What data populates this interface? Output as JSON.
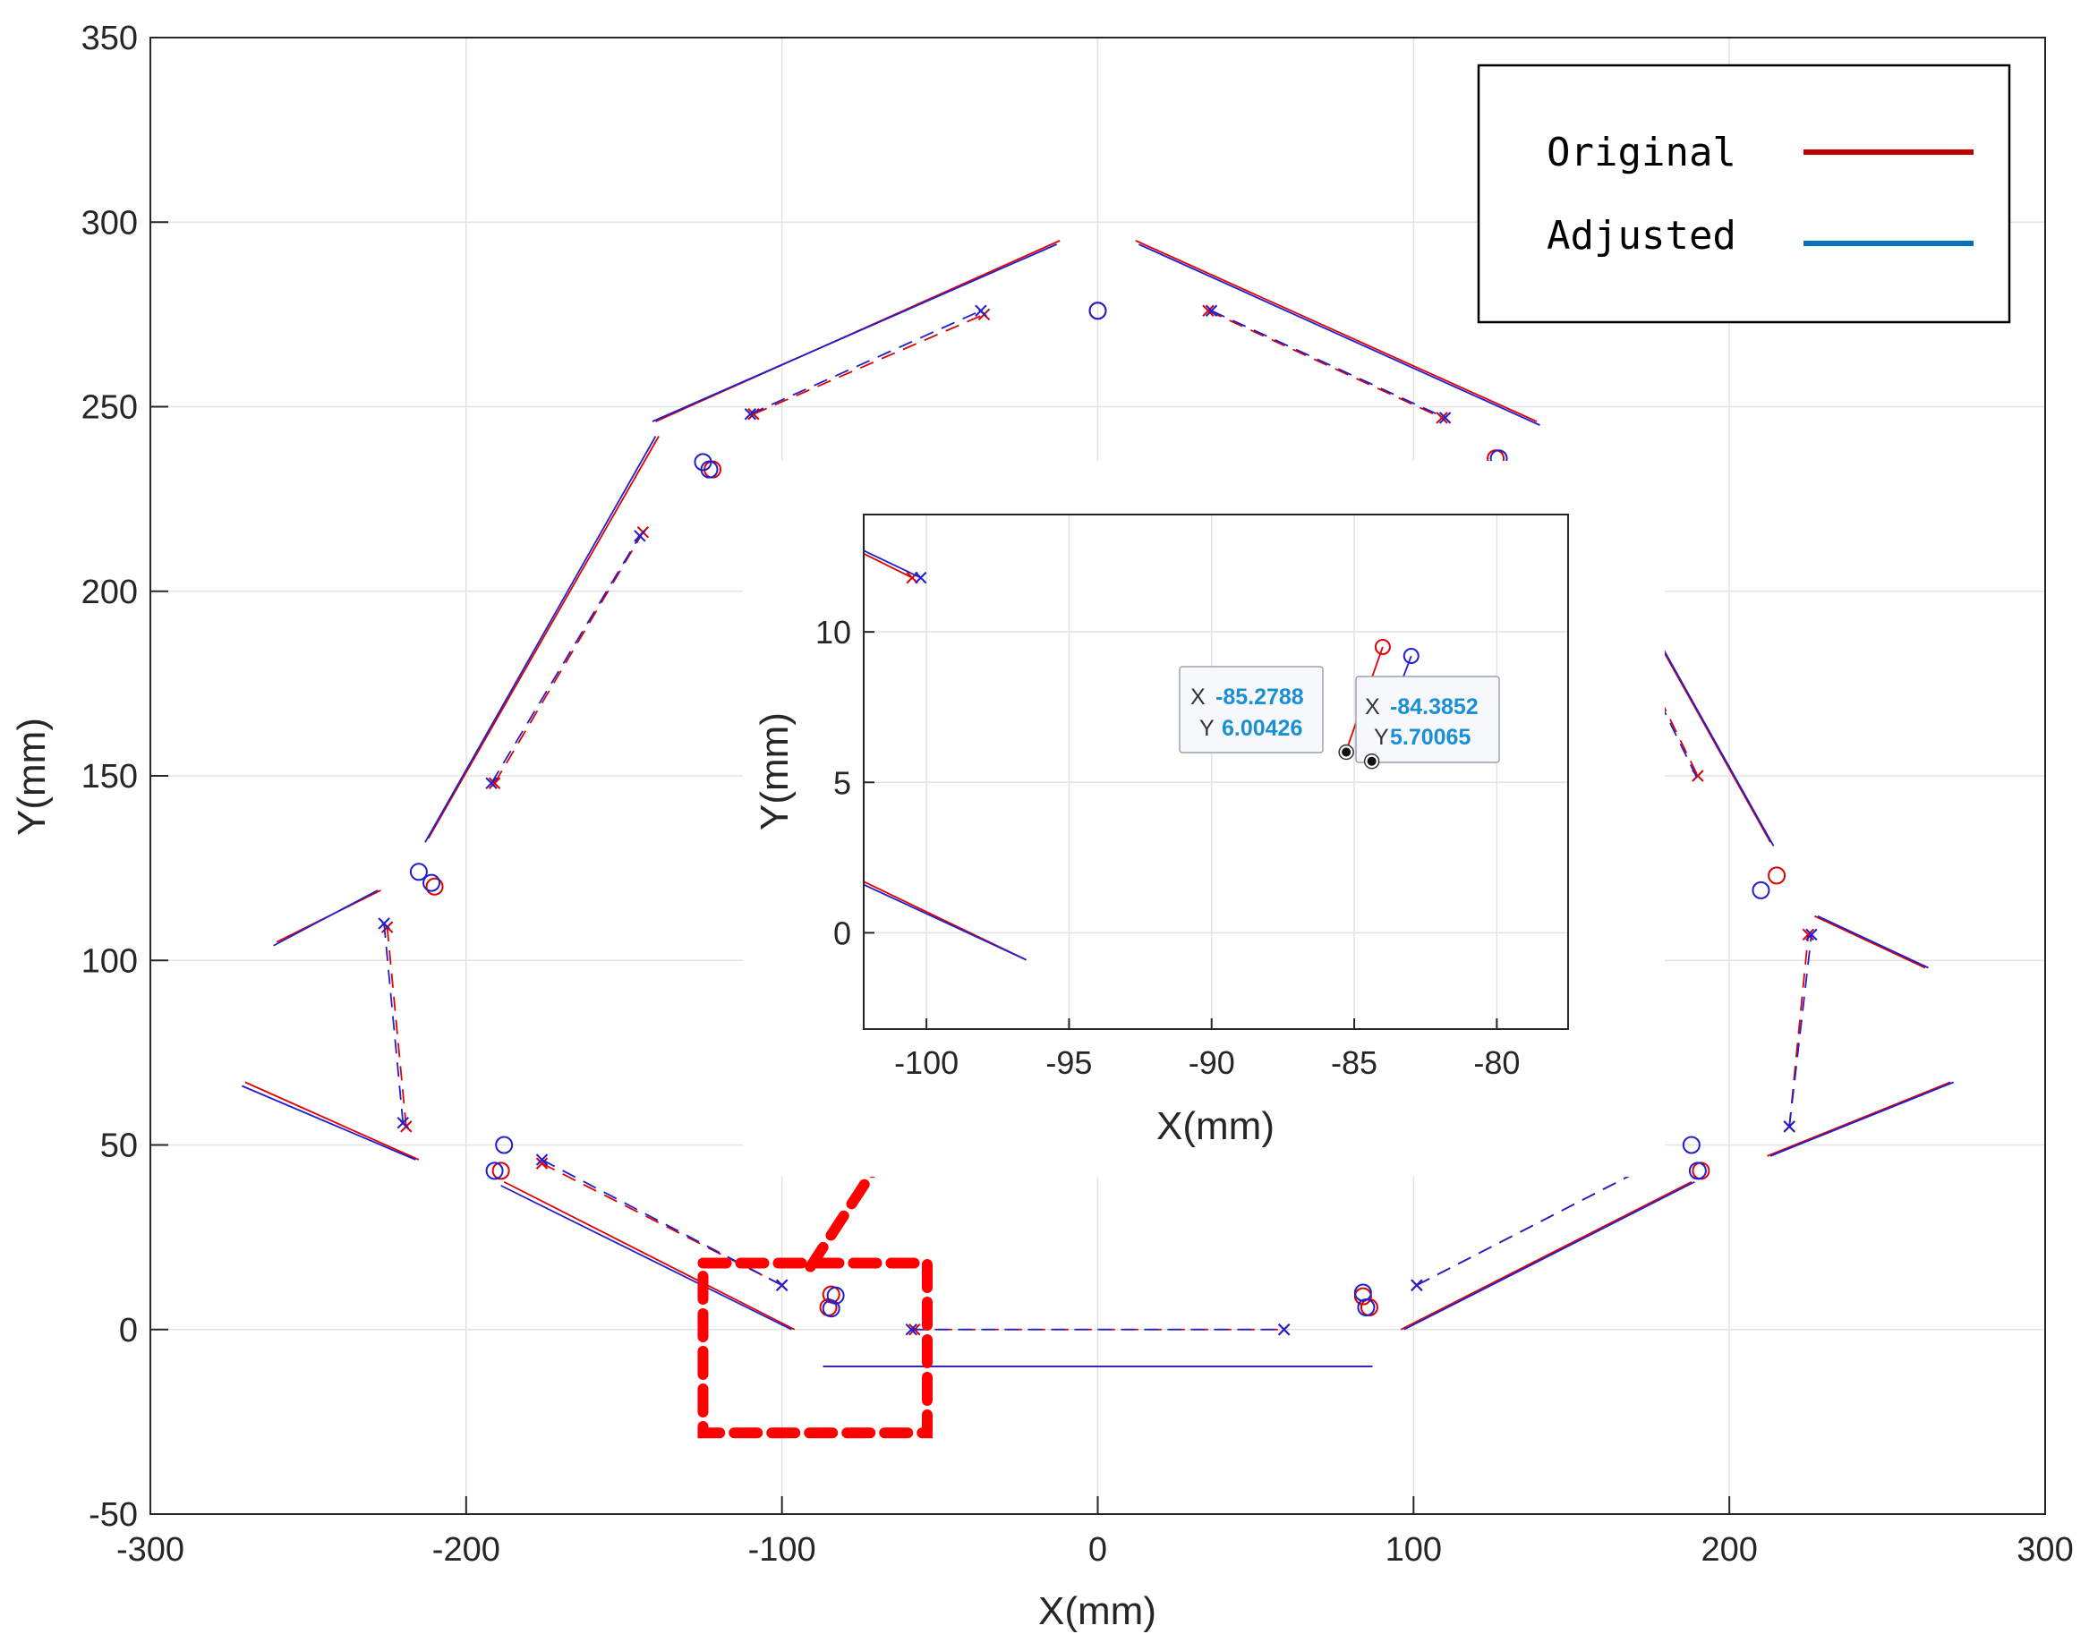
{
  "chart_data": [
    {
      "type": "line",
      "role": "main",
      "title": "",
      "xlabel": "X(mm)",
      "ylabel": "Y(mm)",
      "xlim": [
        -300,
        300
      ],
      "ylim": [
        -50,
        350
      ],
      "xticks": [
        -300,
        -200,
        -100,
        0,
        100,
        200,
        300
      ],
      "yticks": [
        -50,
        0,
        50,
        100,
        150,
        200,
        250,
        300,
        350
      ],
      "xtick_labels": [
        "-300",
        "-200",
        "-100",
        "0",
        "100",
        "200",
        "300"
      ],
      "ytick_labels": [
        "-50",
        "0",
        "50",
        "100",
        "150",
        "200",
        "250",
        "300",
        "350"
      ],
      "grid": true,
      "legend": {
        "placement": "top-right",
        "entries": [
          {
            "label": "Original",
            "color": "#c00000"
          },
          {
            "label": "Adjusted",
            "color": "#0070c0"
          }
        ]
      },
      "series": [
        {
          "name": "Original",
          "color": "#e00000",
          "solid_segments": [
            [
              [
                -270,
                67
              ],
              [
                -215,
                46
              ]
            ],
            [
              [
                -260,
                105
              ],
              [
                -227,
                119
              ]
            ],
            [
              [
                -212,
                133
              ],
              [
                -139,
                242
              ]
            ],
            [
              [
                -140,
                246
              ],
              [
                -12,
                295
              ]
            ],
            [
              [
                12,
                295
              ],
              [
                139,
                246
              ]
            ],
            [
              [
                -188,
                40
              ],
              [
                -96,
                0
              ]
            ],
            [
              [
                -87,
                -10
              ],
              [
                87,
                -10
              ]
            ],
            [
              [
                96,
                0
              ],
              [
                188,
                40
              ]
            ],
            [
              [
                212,
                47
              ],
              [
                270,
                67
              ]
            ],
            [
              [
                227,
                112
              ],
              [
                262,
                98
              ]
            ],
            [
              [
                177,
                187
              ],
              [
                213,
                132
              ]
            ]
          ],
          "dashed_segments": [
            [
              [
                -225,
                109
              ],
              [
                -219,
                55
              ]
            ],
            [
              [
                -191,
                148
              ],
              [
                -144,
                216
              ]
            ],
            [
              [
                -109,
                248
              ],
              [
                -36,
                275
              ]
            ],
            [
              [
                35,
                276
              ],
              [
                109,
                247
              ]
            ],
            [
              [
                -176,
                45
              ],
              [
                -100,
                12
              ]
            ],
            [
              [
                -58,
                0
              ],
              [
                59,
                0
              ]
            ],
            [
              [
                101,
                12
              ],
              [
                176,
                45
              ]
            ],
            [
              [
                219,
                55
              ],
              [
                225,
                107
              ]
            ],
            [
              [
                178,
                171
              ],
              [
                190,
                150
              ]
            ]
          ],
          "cross_markers": [
            [
              -225,
              109
            ],
            [
              -219,
              55
            ],
            [
              -191,
              148
            ],
            [
              -144,
              216
            ],
            [
              -109,
              248
            ],
            [
              -36,
              275
            ],
            [
              35,
              276
            ],
            [
              109,
              247
            ],
            [
              -176,
              45
            ],
            [
              -100,
              12
            ],
            [
              -58,
              0
            ],
            [
              59,
              0
            ],
            [
              101,
              12
            ],
            [
              176,
              45
            ],
            [
              190,
              150
            ],
            [
              219,
              55
            ],
            [
              225,
              107
            ]
          ],
          "circle_markers": [
            [
              -210,
              120
            ],
            [
              -122,
              233
            ],
            [
              0,
              276
            ],
            [
              126,
              236
            ],
            [
              -189,
              43
            ],
            [
              -84.4,
              9.5
            ],
            [
              -85.3,
              6.0
            ],
            [
              84,
              9
            ],
            [
              86,
              6
            ],
            [
              191,
              43
            ],
            [
              215,
              123
            ]
          ]
        },
        {
          "name": "Adjusted",
          "color": "#1f1fd0",
          "solid_segments": [
            [
              [
                -271,
                66
              ],
              [
                -216,
                46
              ]
            ],
            [
              [
                -261,
                104
              ],
              [
                -228,
                119
              ]
            ],
            [
              [
                -213,
                132
              ],
              [
                -140,
                242
              ]
            ],
            [
              [
                -141,
                246
              ],
              [
                -13,
                294
              ]
            ],
            [
              [
                13,
                294
              ],
              [
                140,
                245
              ]
            ],
            [
              [
                -189,
                39
              ],
              [
                -97,
                0
              ]
            ],
            [
              [
                -87,
                -10
              ],
              [
                87,
                -10
              ]
            ],
            [
              [
                97,
                0
              ],
              [
                189,
                40
              ]
            ],
            [
              [
                213,
                47
              ],
              [
                271,
                67
              ]
            ],
            [
              [
                228,
                112
              ],
              [
                263,
                98
              ]
            ],
            [
              [
                178,
                186
              ],
              [
                214,
                131
              ]
            ]
          ],
          "dashed_segments": [
            [
              [
                -226,
                110
              ],
              [
                -220,
                56
              ]
            ],
            [
              [
                -192,
                148
              ],
              [
                -145,
                215
              ]
            ],
            [
              [
                -110,
                248
              ],
              [
                -37,
                276
              ]
            ],
            [
              [
                36,
                276
              ],
              [
                110,
                247
              ]
            ],
            [
              [
                -176,
                46
              ],
              [
                -100,
                12
              ]
            ],
            [
              [
                -59,
                0
              ],
              [
                59,
                0
              ]
            ],
            [
              [
                101,
                12
              ],
              [
                176,
                45
              ]
            ],
            [
              [
                219,
                55
              ],
              [
                226,
                107
              ]
            ],
            [
              [
                178,
                170
              ],
              [
                190,
                149
              ]
            ]
          ],
          "cross_markers": [
            [
              -226,
              110
            ],
            [
              -220,
              56
            ],
            [
              -192,
              148
            ],
            [
              -145,
              215
            ],
            [
              -110,
              248
            ],
            [
              -37,
              276
            ],
            [
              36,
              276
            ],
            [
              110,
              247
            ],
            [
              -176,
              46
            ],
            [
              -100,
              12
            ],
            [
              -59,
              0
            ],
            [
              59,
              0
            ],
            [
              101,
              12
            ],
            [
              176,
              45
            ],
            [
              219,
              55
            ],
            [
              226,
              107
            ]
          ],
          "circle_markers": [
            [
              -215,
              124
            ],
            [
              -211,
              121
            ],
            [
              -125,
              235
            ],
            [
              -123,
              233
            ],
            [
              0,
              276
            ],
            [
              127,
              236
            ],
            [
              -191,
              43
            ],
            [
              -188,
              50
            ],
            [
              -83,
              9.2
            ],
            [
              -84.4,
              5.7
            ],
            [
              84,
              10
            ],
            [
              85,
              6
            ],
            [
              188,
              50
            ],
            [
              190,
              43
            ],
            [
              210,
              119
            ]
          ]
        }
      ],
      "annotations": [
        {
          "type": "dashed-rect",
          "color": "#ff0000",
          "x": [
            -125,
            -54
          ],
          "y": [
            -28,
            18
          ]
        },
        {
          "type": "dashed-line",
          "color": "#ff0000",
          "from": [
            -91,
            17
          ],
          "to": [
            -68,
            47
          ]
        }
      ]
    },
    {
      "type": "line",
      "role": "inset",
      "title": "",
      "xlabel": "X(mm)",
      "ylabel": "Y(mm)",
      "xlim": [
        -102.2,
        -77.5
      ],
      "ylim": [
        -3.2,
        13.9
      ],
      "xticks": [
        -100,
        -95,
        -90,
        -85,
        -80
      ],
      "yticks": [
        0,
        5,
        10
      ],
      "xtick_labels": [
        "-100",
        "-95",
        "-90",
        "-85",
        "-80"
      ],
      "ytick_labels": [
        "0",
        "5",
        "10"
      ],
      "grid": true,
      "series": [
        {
          "name": "Original",
          "color": "#e00000",
          "segments": [
            [
              [
                -102.2,
                12.6
              ],
              [
                -100.5,
                11.8
              ]
            ],
            [
              [
                -102.2,
                1.7
              ],
              [
                -96.5,
                -0.9
              ]
            ],
            [
              [
                -85.3,
                6.0
              ],
              [
                -84.0,
                9.5
              ]
            ]
          ],
          "cross_markers": [
            [
              -100.5,
              11.8
            ]
          ],
          "circle_markers": [
            [
              -84.0,
              9.5
            ]
          ]
        },
        {
          "name": "Adjusted",
          "color": "#1f1fd0",
          "segments": [
            [
              [
                -102.2,
                12.7
              ],
              [
                -100.2,
                11.8
              ]
            ],
            [
              [
                -102.2,
                1.6
              ],
              [
                -96.5,
                -0.9
              ]
            ],
            [
              [
                -84.4,
                5.7
              ],
              [
                -83.0,
                9.2
              ]
            ]
          ],
          "cross_markers": [
            [
              -100.2,
              11.8
            ]
          ],
          "circle_markers": [
            [
              -83.0,
              9.2
            ]
          ]
        }
      ],
      "datatips": [
        {
          "x_label": "X",
          "x_value": "-85.2788",
          "y_label": "Y",
          "y_value": "6.00426",
          "point": [
            -85.2788,
            6.00426
          ],
          "side": "left"
        },
        {
          "x_label": "X",
          "x_value": "-84.3852",
          "y_label": "Y",
          "y_value": "5.70065",
          "point": [
            -84.3852,
            5.70065
          ],
          "side": "right"
        }
      ]
    }
  ]
}
